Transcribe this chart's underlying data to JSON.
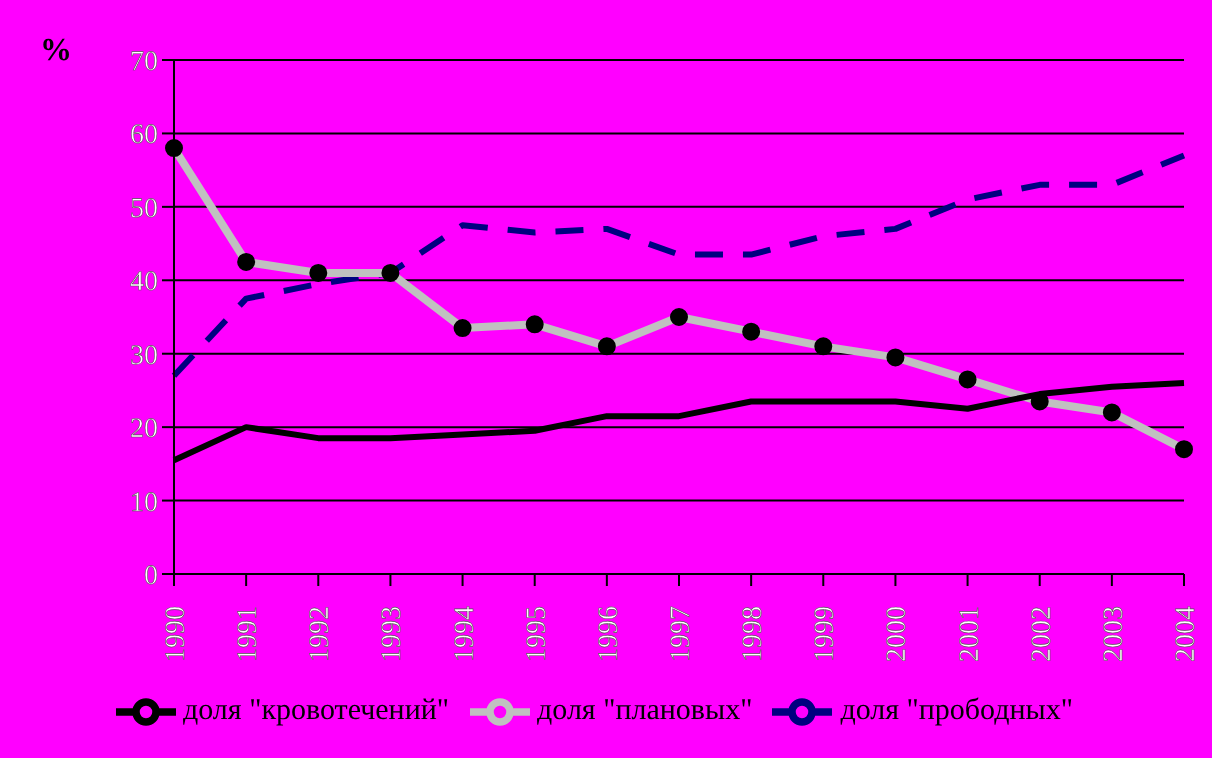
{
  "chart_data": {
    "type": "line",
    "ylabel": "%",
    "categories": [
      "1990",
      "1991",
      "1992",
      "1993",
      "1994",
      "1995",
      "1996",
      "1997",
      "1998",
      "1999",
      "2000",
      "2001",
      "2002",
      "2003",
      "2004"
    ],
    "series": [
      {
        "name": "доля \"прободных\"",
        "color": "#000080",
        "line_style": "dashed",
        "marker": "none",
        "values": [
          27,
          37.5,
          39.5,
          41,
          47.5,
          46.5,
          47,
          43.5,
          43.5,
          46,
          47,
          51,
          53,
          53,
          57
        ]
      },
      {
        "name": "доля \"плановых\"",
        "color": "#c0c0c0",
        "line_style": "solid",
        "marker": "circle",
        "values": [
          58,
          42.5,
          41,
          41,
          33.5,
          34,
          31,
          35,
          33,
          31,
          29.5,
          26.5,
          23.5,
          22,
          17
        ]
      },
      {
        "name": "доля \"кровотечений\"",
        "color": "#000000",
        "line_style": "solid",
        "marker": "none",
        "values": [
          15.5,
          20,
          18.5,
          18.5,
          19,
          19.5,
          21.5,
          21.5,
          23.5,
          23.5,
          23.5,
          22.5,
          24.5,
          25.5,
          26
        ]
      }
    ],
    "ylim": [
      0,
      70
    ],
    "yticks": [
      0,
      10,
      20,
      30,
      40,
      50,
      60,
      70
    ],
    "grid": "y",
    "legend": "bottom"
  }
}
